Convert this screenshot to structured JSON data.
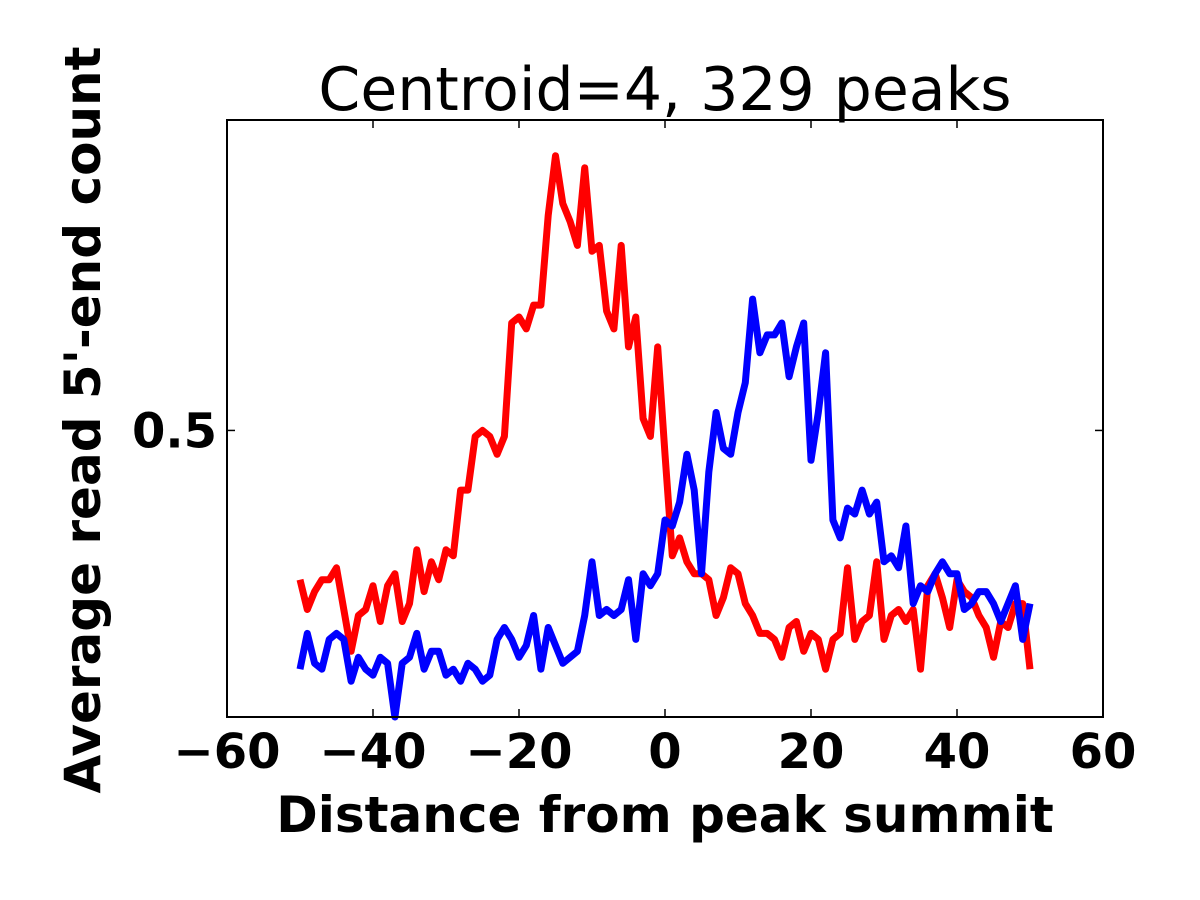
{
  "chart_data": {
    "type": "line",
    "title": "Centroid=4, 329 peaks",
    "xlabel": "Distance from peak summit",
    "ylabel": "Average read 5'-end count",
    "xlim": [
      -60,
      60
    ],
    "ylim": [
      0.02,
      1.02
    ],
    "xticks": [
      -60,
      -40,
      -20,
      0,
      20,
      40,
      60
    ],
    "xtick_labels": [
      "−60",
      "−40",
      "−20",
      "0",
      "20",
      "40",
      "60"
    ],
    "yticks": [
      0.5
    ],
    "ytick_labels": [
      "0.5"
    ],
    "grid": false,
    "legend": "none",
    "x": [
      -50,
      -49,
      -48,
      -47,
      -46,
      -45,
      -44,
      -43,
      -42,
      -41,
      -40,
      -39,
      -38,
      -37,
      -36,
      -35,
      -34,
      -33,
      -32,
      -31,
      -30,
      -29,
      -28,
      -27,
      -26,
      -25,
      -24,
      -23,
      -22,
      -21,
      -20,
      -19,
      -18,
      -17,
      -16,
      -15,
      -14,
      -13,
      -12,
      -11,
      -10,
      -9,
      -8,
      -7,
      -6,
      -5,
      -4,
      -3,
      -2,
      -1,
      0,
      1,
      2,
      3,
      4,
      5,
      6,
      7,
      8,
      9,
      10,
      11,
      12,
      13,
      14,
      15,
      16,
      17,
      18,
      19,
      20,
      21,
      22,
      23,
      24,
      25,
      26,
      27,
      28,
      29,
      30,
      31,
      32,
      33,
      34,
      35,
      36,
      37,
      38,
      39,
      40,
      41,
      42,
      43,
      44,
      45,
      46,
      47,
      48,
      49,
      50
    ],
    "series": [
      {
        "color": "#ff0000",
        "values": [
          0.25,
          0.2,
          0.23,
          0.25,
          0.25,
          0.27,
          0.2,
          0.13,
          0.19,
          0.2,
          0.24,
          0.18,
          0.24,
          0.26,
          0.18,
          0.21,
          0.3,
          0.23,
          0.28,
          0.25,
          0.3,
          0.29,
          0.4,
          0.4,
          0.49,
          0.5,
          0.49,
          0.46,
          0.49,
          0.68,
          0.69,
          0.67,
          0.71,
          0.71,
          0.86,
          0.96,
          0.88,
          0.85,
          0.81,
          0.94,
          0.8,
          0.81,
          0.7,
          0.67,
          0.81,
          0.64,
          0.69,
          0.52,
          0.49,
          0.64,
          0.46,
          0.29,
          0.32,
          0.28,
          0.26,
          0.26,
          0.25,
          0.19,
          0.22,
          0.27,
          0.26,
          0.21,
          0.19,
          0.16,
          0.16,
          0.15,
          0.12,
          0.17,
          0.18,
          0.13,
          0.16,
          0.15,
          0.1,
          0.15,
          0.16,
          0.27,
          0.15,
          0.18,
          0.19,
          0.28,
          0.15,
          0.19,
          0.2,
          0.18,
          0.2,
          0.1,
          0.24,
          0.26,
          0.22,
          0.17,
          0.25,
          0.23,
          0.22,
          0.19,
          0.17,
          0.12,
          0.18,
          0.17,
          0.21,
          0.21,
          0.1
        ]
      },
      {
        "color": "#0000ff",
        "values": [
          0.1,
          0.16,
          0.11,
          0.1,
          0.15,
          0.16,
          0.15,
          0.08,
          0.12,
          0.1,
          0.09,
          0.12,
          0.11,
          0.02,
          0.11,
          0.12,
          0.16,
          0.1,
          0.13,
          0.13,
          0.09,
          0.1,
          0.08,
          0.11,
          0.1,
          0.08,
          0.09,
          0.15,
          0.17,
          0.15,
          0.12,
          0.14,
          0.19,
          0.1,
          0.17,
          0.14,
          0.11,
          0.12,
          0.13,
          0.19,
          0.28,
          0.19,
          0.2,
          0.19,
          0.2,
          0.25,
          0.15,
          0.26,
          0.24,
          0.26,
          0.35,
          0.34,
          0.38,
          0.46,
          0.4,
          0.26,
          0.43,
          0.53,
          0.47,
          0.46,
          0.53,
          0.58,
          0.72,
          0.63,
          0.66,
          0.66,
          0.68,
          0.59,
          0.64,
          0.68,
          0.45,
          0.53,
          0.63,
          0.35,
          0.32,
          0.37,
          0.36,
          0.4,
          0.36,
          0.38,
          0.28,
          0.29,
          0.27,
          0.34,
          0.21,
          0.24,
          0.23,
          0.26,
          0.28,
          0.26,
          0.26,
          0.2,
          0.21,
          0.23,
          0.23,
          0.21,
          0.18,
          0.21,
          0.24,
          0.15,
          0.21
        ]
      }
    ]
  }
}
